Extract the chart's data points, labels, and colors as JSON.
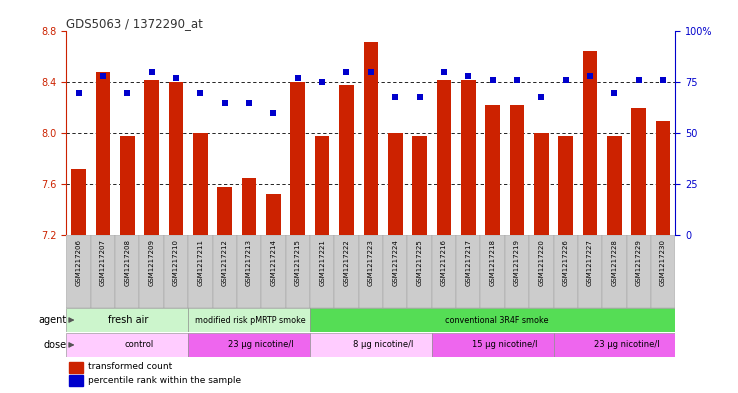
{
  "title": "GDS5063 / 1372290_at",
  "samples": [
    "GSM1217206",
    "GSM1217207",
    "GSM1217208",
    "GSM1217209",
    "GSM1217210",
    "GSM1217211",
    "GSM1217212",
    "GSM1217213",
    "GSM1217214",
    "GSM1217215",
    "GSM1217221",
    "GSM1217222",
    "GSM1217223",
    "GSM1217224",
    "GSM1217225",
    "GSM1217216",
    "GSM1217217",
    "GSM1217218",
    "GSM1217219",
    "GSM1217220",
    "GSM1217226",
    "GSM1217227",
    "GSM1217228",
    "GSM1217229",
    "GSM1217230"
  ],
  "bar_values": [
    7.72,
    8.48,
    7.98,
    8.42,
    8.4,
    8.0,
    7.58,
    7.65,
    7.52,
    8.4,
    7.98,
    8.38,
    8.72,
    8.0,
    7.98,
    8.42,
    8.42,
    8.22,
    8.22,
    8.0,
    7.98,
    8.65,
    7.98,
    8.2,
    8.1
  ],
  "dot_values": [
    70,
    78,
    70,
    80,
    77,
    70,
    65,
    65,
    60,
    77,
    75,
    80,
    80,
    68,
    68,
    80,
    78,
    76,
    76,
    68,
    76,
    78,
    70,
    76,
    76
  ],
  "bar_color": "#cc2200",
  "dot_color": "#0000cc",
  "ylim_left": [
    7.2,
    8.8
  ],
  "ylim_right": [
    0,
    100
  ],
  "yticks_left": [
    7.2,
    7.6,
    8.0,
    8.4,
    8.8
  ],
  "yticks_right": [
    0,
    25,
    50,
    75,
    100
  ],
  "ytick_labels_right": [
    "0",
    "25",
    "50",
    "75",
    "100%"
  ],
  "grid_lines": [
    7.6,
    8.0,
    8.4
  ],
  "agent_groups": [
    {
      "label": "fresh air",
      "start": 0,
      "end": 5,
      "color": "#ccf5cc"
    },
    {
      "label": "modified risk pMRTP smoke",
      "start": 5,
      "end": 10,
      "color": "#ccf5cc"
    },
    {
      "label": "conventional 3R4F smoke",
      "start": 10,
      "end": 25,
      "color": "#55dd55"
    }
  ],
  "dose_groups": [
    {
      "label": "control",
      "start": 0,
      "end": 5,
      "color": "#ffccff"
    },
    {
      "label": "23 μg nicotine/l",
      "start": 5,
      "end": 10,
      "color": "#ee66ee"
    },
    {
      "label": "8 μg nicotine/l",
      "start": 10,
      "end": 15,
      "color": "#ffccff"
    },
    {
      "label": "15 μg nicotine/l",
      "start": 15,
      "end": 20,
      "color": "#ee66ee"
    },
    {
      "label": "23 μg nicotine/l",
      "start": 20,
      "end": 25,
      "color": "#ee66ee"
    }
  ],
  "legend_items": [
    {
      "label": "transformed count",
      "color": "#cc2200"
    },
    {
      "label": "percentile rank within the sample",
      "color": "#0000cc"
    }
  ],
  "agent_label": "agent",
  "dose_label": "dose",
  "title_color": "#333333",
  "left_axis_color": "#cc2200",
  "right_axis_color": "#0000cc",
  "xtick_bg": "#cccccc"
}
